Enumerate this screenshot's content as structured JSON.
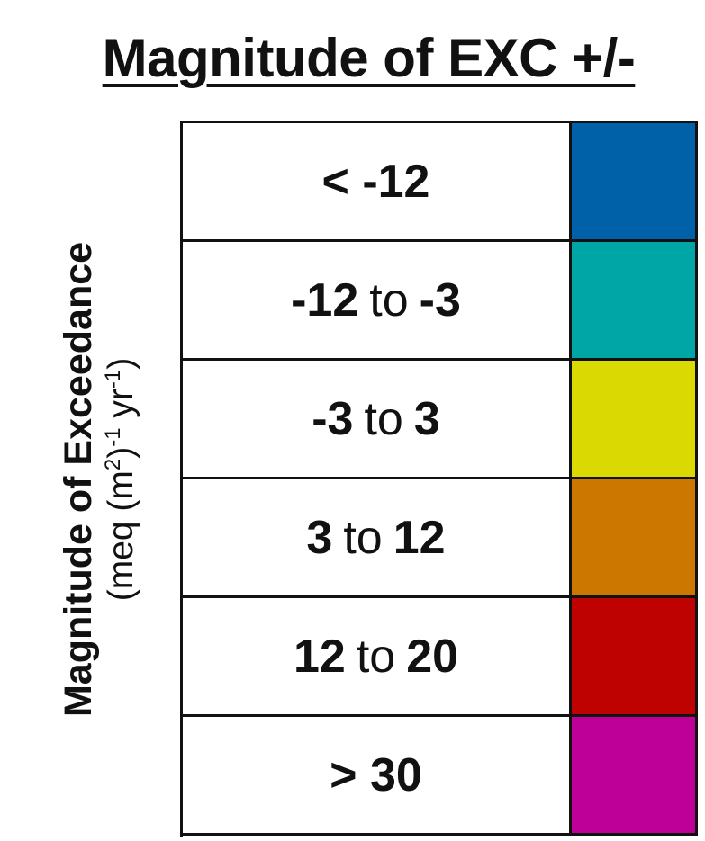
{
  "title": "Magnitude of EXC +/-",
  "side_title": {
    "line1": "Magnitude of Exceedance",
    "unit_open": "(meq (m",
    "sup1": "2",
    "unit_mid": ")",
    "sup2": "-1",
    "unit_yr": " yr",
    "sup3": "-1",
    "unit_close": ")"
  },
  "legend": [
    {
      "label_a": "< -12",
      "connector": "",
      "label_b": "",
      "color": "#0060a8"
    },
    {
      "label_a": "-12",
      "connector": "to",
      "label_b": "-3",
      "color": "#00a6a6"
    },
    {
      "label_a": "-3",
      "connector": "to",
      "label_b": "3",
      "color": "#dbd902"
    },
    {
      "label_a": "3",
      "connector": "to",
      "label_b": "12",
      "color": "#cc7800"
    },
    {
      "label_a": "12",
      "connector": "to",
      "label_b": "20",
      "color": "#be0101"
    },
    {
      "label_a": "> 30",
      "connector": "",
      "label_b": "",
      "color": "#be0098"
    }
  ]
}
